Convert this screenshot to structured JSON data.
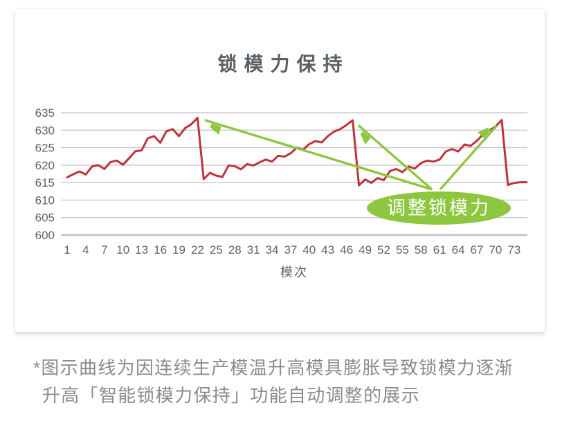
{
  "page": {
    "caption_line1": "*图示曲线为因连续生产模温升高模具膨胀导致锁模力逐渐",
    "caption_line2": "升高「智能锁模力保持」功能自动调整的展示"
  },
  "colors": {
    "line_red": "#be3339",
    "accent_green": "#8dc63f",
    "grid": "#c8c8c8",
    "grid_base": "#bfbfbf",
    "axis_text": "#5f6368",
    "title_text": "#596066",
    "caption_text": "#8b8b8b",
    "annotation_text": "#ffffff"
  },
  "chart_data": {
    "type": "line",
    "title": "锁模力保持",
    "xlabel": "模次",
    "ylabel": "",
    "ylim": [
      600,
      635
    ],
    "grid": true,
    "legend_position": "none",
    "y_ticks": [
      600,
      605,
      610,
      615,
      620,
      625,
      630,
      635
    ],
    "x_ticks": [
      1,
      4,
      7,
      10,
      13,
      16,
      19,
      22,
      25,
      28,
      31,
      34,
      37,
      40,
      43,
      46,
      49,
      52,
      55,
      58,
      61,
      64,
      67,
      70,
      73
    ],
    "series": [
      {
        "name": "锁模力",
        "color": "#be3339",
        "x_start": 1,
        "values": [
          616.5,
          617.4,
          618.2,
          617.3,
          619.6,
          620.0,
          618.9,
          620.9,
          621.3,
          620.1,
          622.0,
          624.0,
          624.2,
          627.7,
          628.3,
          626.4,
          629.7,
          630.3,
          628.3,
          630.6,
          631.7,
          633.5,
          616.0,
          617.8,
          617.0,
          616.6,
          619.9,
          619.7,
          618.8,
          620.3,
          619.9,
          620.8,
          621.6,
          621.0,
          622.7,
          622.4,
          623.4,
          625.0,
          624.4,
          626.0,
          626.9,
          626.5,
          628.3,
          629.6,
          630.3,
          631.5,
          632.8,
          614.2,
          615.9,
          614.9,
          616.3,
          615.7,
          618.3,
          618.9,
          618.0,
          619.6,
          619.0,
          620.6,
          621.3,
          621.0,
          621.6,
          623.9,
          624.6,
          623.9,
          625.9,
          625.5,
          627.0,
          628.8,
          629.9,
          631.0,
          632.9,
          614.3,
          614.9,
          615.1,
          615.1
        ]
      }
    ],
    "annotation": {
      "label": "调整锁模力",
      "color": "#8dc63f",
      "arrow_target_indices": [
        22,
        47,
        71
      ]
    }
  }
}
